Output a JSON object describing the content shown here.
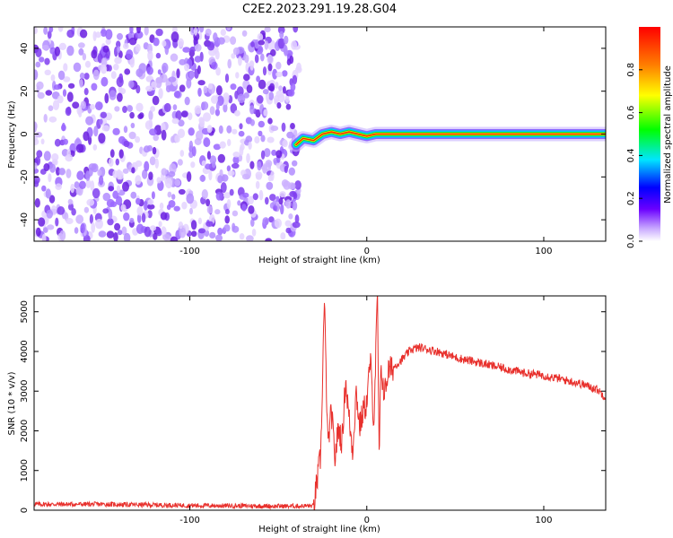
{
  "title": "C2E2.2023.291.19.28.G04",
  "colors": {
    "snr_line": "#e8302c",
    "axis": "#000000"
  },
  "chart_data": [
    {
      "type": "heatmap",
      "xlabel": "Height of straight line (km)",
      "ylabel": "Frequency (Hz)",
      "xlim": [
        -188,
        135
      ],
      "ylim": [
        -50,
        50
      ],
      "x_ticks": [
        -100,
        0,
        100
      ],
      "x_tick_labels": [
        "-100",
        "0",
        "100"
      ],
      "y_ticks": [
        -40,
        -20,
        0,
        20,
        40
      ],
      "y_tick_labels": [
        "-40",
        "-20",
        "0",
        "20",
        "40"
      ],
      "noise_region_x": [
        -188,
        -38
      ],
      "signal_track": {
        "x": [
          -40,
          -36,
          -30,
          -25,
          -20,
          -15,
          -10,
          -5,
          0,
          5,
          10,
          40,
          80,
          135
        ],
        "y": [
          -5,
          -2,
          -3,
          0,
          1,
          0,
          1,
          0,
          -1,
          0,
          0,
          0,
          0,
          0
        ]
      },
      "colorbar": {
        "label": "Normalized spectral amplitude",
        "range": [
          0.0,
          1.0
        ],
        "ticks": [
          0.0,
          0.2,
          0.4,
          0.6,
          0.8
        ],
        "tick_labels": [
          "0.0",
          "0.2",
          "0.4",
          "0.6",
          "0.8"
        ]
      }
    },
    {
      "type": "line",
      "xlabel": "Height of straight line (km)",
      "ylabel": "SNR (10 * v/v)",
      "xlim": [
        -188,
        135
      ],
      "ylim": [
        0,
        5400
      ],
      "x_ticks": [
        -100,
        0,
        100
      ],
      "x_tick_labels": [
        "-100",
        "0",
        "100"
      ],
      "y_ticks": [
        0,
        1000,
        2000,
        3000,
        4000,
        5000
      ],
      "y_tick_labels": [
        "0",
        "1000",
        "2000",
        "3000",
        "4000",
        "5000"
      ],
      "series": [
        {
          "x": [
            -188,
            -150,
            -100,
            -50,
            -30,
            -26,
            -24,
            -22,
            -20,
            -18,
            -16,
            -14,
            -12,
            -10,
            -8,
            -6,
            -4,
            -2,
            0,
            2,
            4,
            6,
            7,
            8,
            10,
            12,
            15,
            20,
            25,
            30,
            40,
            50,
            60,
            70,
            80,
            90,
            100,
            110,
            120,
            130,
            135
          ],
          "y": [
            150,
            150,
            120,
            100,
            110,
            1400,
            5300,
            1600,
            2500,
            1300,
            2100,
            1700,
            3300,
            2300,
            1500,
            3000,
            2100,
            2500,
            2700,
            3800,
            2200,
            5400,
            1200,
            3600,
            2900,
            3500,
            3600,
            3800,
            4050,
            4100,
            4000,
            3850,
            3750,
            3650,
            3550,
            3450,
            3400,
            3300,
            3200,
            3050,
            2850
          ]
        }
      ]
    }
  ]
}
